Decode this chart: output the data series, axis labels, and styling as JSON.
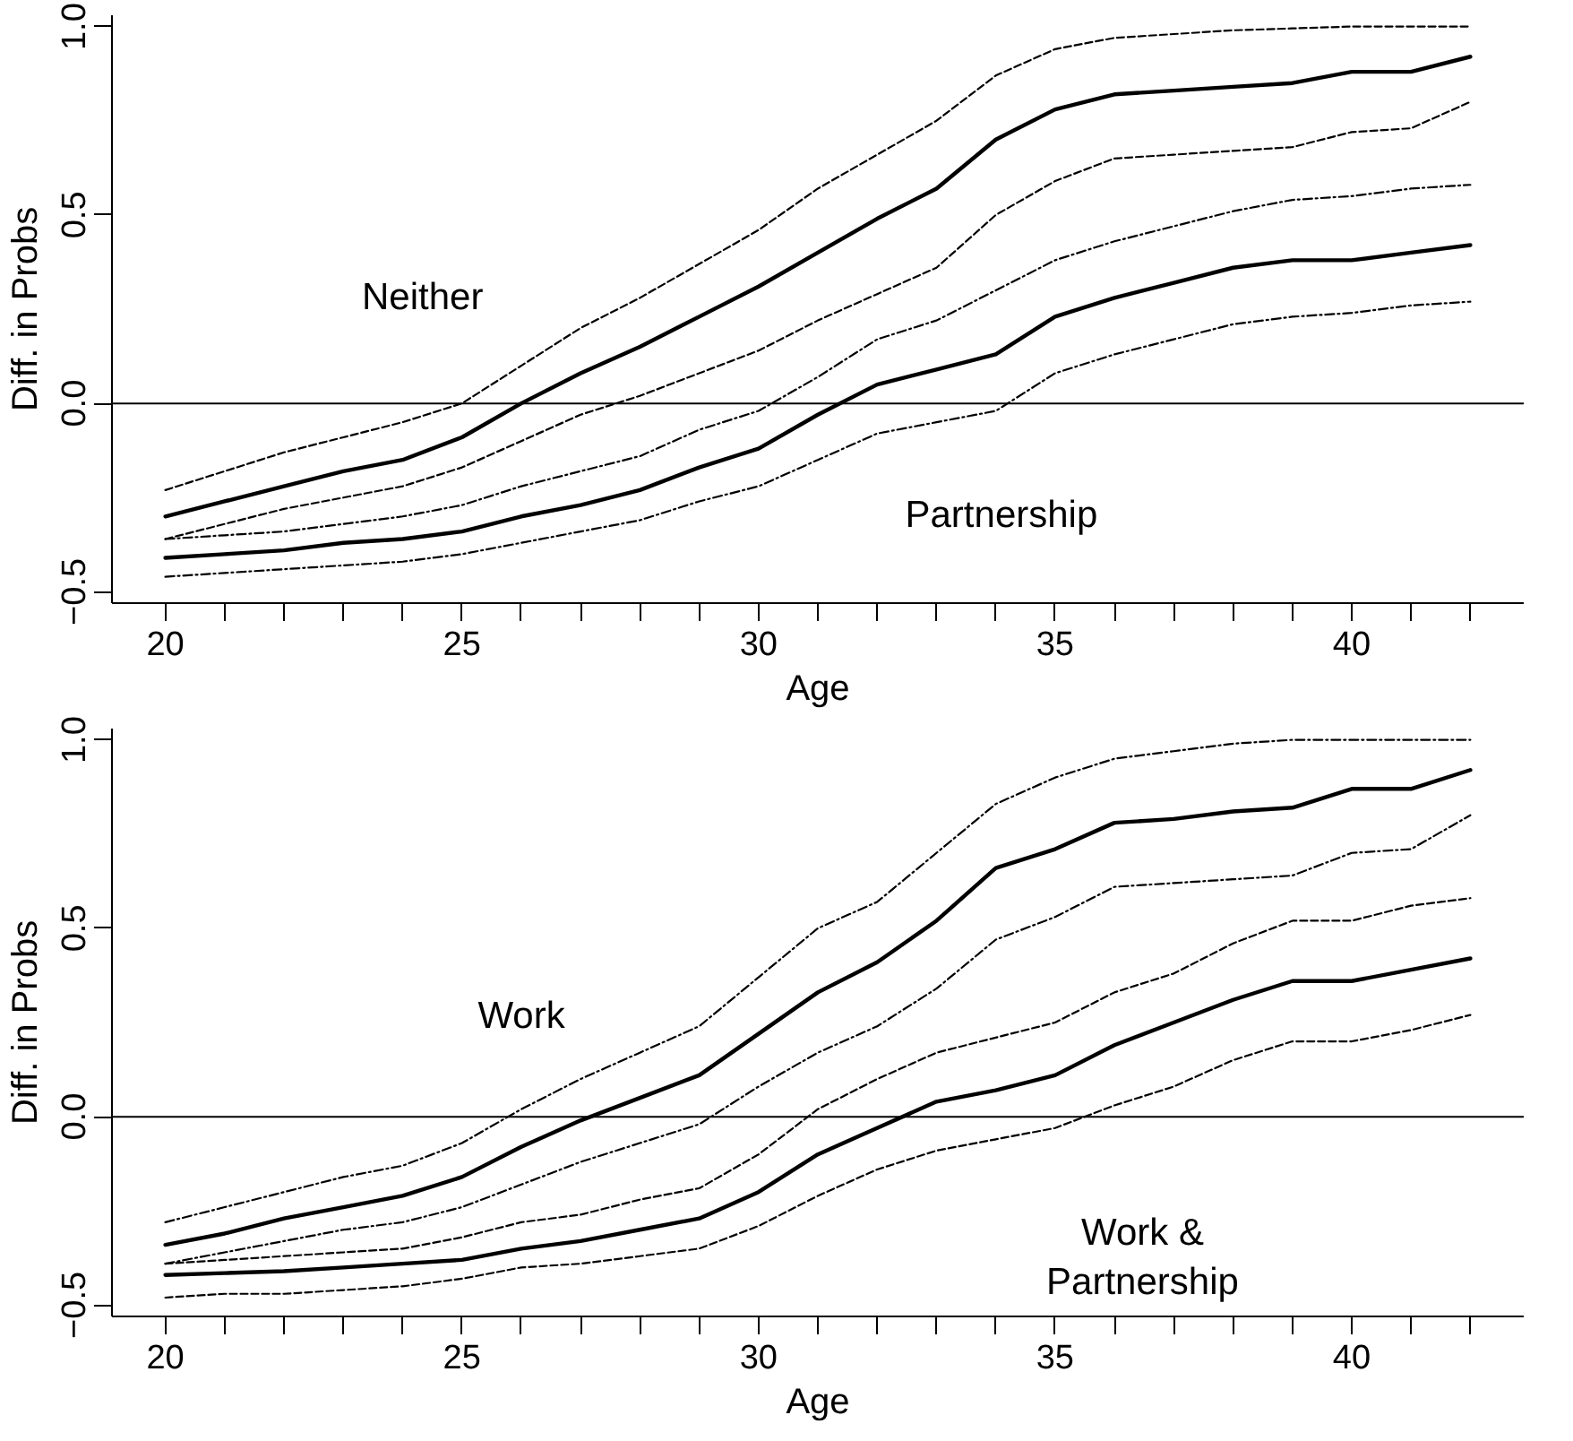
{
  "chart_data": [
    {
      "type": "line",
      "xlabel": "Age",
      "ylabel": "Diff. in Probs",
      "x": [
        20,
        21,
        22,
        23,
        24,
        25,
        26,
        27,
        28,
        29,
        30,
        31,
        32,
        33,
        34,
        35,
        36,
        37,
        38,
        39,
        40,
        41,
        42
      ],
      "xlim": [
        19.1,
        42.9
      ],
      "ylim": [
        -0.53,
        1.03
      ],
      "xticks": [
        20,
        {
          "value": 21,
          "label": null
        },
        {
          "value": 22,
          "label": null
        },
        {
          "value": 23,
          "label": null
        },
        {
          "value": 24,
          "label": null
        },
        25,
        {
          "value": 26,
          "label": null
        },
        {
          "value": 27,
          "label": null
        },
        {
          "value": 28,
          "label": null
        },
        {
          "value": 29,
          "label": null
        },
        30,
        {
          "value": 31,
          "label": null
        },
        {
          "value": 32,
          "label": null
        },
        {
          "value": 33,
          "label": null
        },
        {
          "value": 34,
          "label": null
        },
        35,
        {
          "value": 36,
          "label": null
        },
        {
          "value": 37,
          "label": null
        },
        {
          "value": 38,
          "label": null
        },
        {
          "value": 39,
          "label": null
        },
        40,
        {
          "value": 41,
          "label": null
        },
        {
          "value": 42,
          "label": null
        }
      ],
      "yticks": [
        {
          "value": -0.5,
          "label": "−0.5"
        },
        {
          "value": 0,
          "label": "0.0"
        },
        {
          "value": 0.5,
          "label": "0.5"
        },
        {
          "value": 1,
          "label": "1.0"
        }
      ],
      "grid": false,
      "marker": "none",
      "ref_lines": [
        {
          "axis": "y",
          "value": 0,
          "color": "#000000",
          "line_style": "solid"
        }
      ],
      "annotations": [
        "Neither",
        "Partnership"
      ],
      "series": [
        {
          "color": "#000000",
          "line_style": "dashed",
          "values": [
            -0.23,
            -0.18,
            -0.13,
            -0.09,
            -0.05,
            0.0,
            0.1,
            0.2,
            0.28,
            0.37,
            0.46,
            0.57,
            0.66,
            0.75,
            0.87,
            0.94,
            0.97,
            0.98,
            0.99,
            0.995,
            1.0,
            1.0,
            1.0
          ]
        },
        {
          "color": "#000000",
          "line_style": "solid",
          "values": [
            -0.3,
            -0.26,
            -0.22,
            -0.18,
            -0.15,
            -0.09,
            0.0,
            0.08,
            0.15,
            0.23,
            0.31,
            0.4,
            0.49,
            0.57,
            0.7,
            0.78,
            0.82,
            0.83,
            0.84,
            0.85,
            0.88,
            0.88,
            0.92
          ]
        },
        {
          "color": "#000000",
          "line_style": "dashed",
          "values": [
            -0.36,
            -0.32,
            -0.28,
            -0.25,
            -0.22,
            -0.17,
            -0.1,
            -0.03,
            0.02,
            0.08,
            0.14,
            0.22,
            0.29,
            0.36,
            0.5,
            0.59,
            0.65,
            0.66,
            0.67,
            0.68,
            0.72,
            0.73,
            0.8
          ]
        },
        {
          "color": "#000000",
          "line_style": "dashdot",
          "values": [
            -0.36,
            -0.35,
            -0.34,
            -0.32,
            -0.3,
            -0.27,
            -0.22,
            -0.18,
            -0.14,
            -0.07,
            -0.02,
            0.07,
            0.17,
            0.22,
            0.3,
            0.38,
            0.43,
            0.47,
            0.51,
            0.54,
            0.55,
            0.57,
            0.58
          ]
        },
        {
          "color": "#000000",
          "line_style": "solid",
          "values": [
            -0.41,
            -0.4,
            -0.39,
            -0.37,
            -0.36,
            -0.34,
            -0.3,
            -0.27,
            -0.23,
            -0.17,
            -0.12,
            -0.03,
            0.05,
            0.09,
            0.13,
            0.23,
            0.28,
            0.32,
            0.36,
            0.38,
            0.38,
            0.4,
            0.42
          ]
        },
        {
          "color": "#000000",
          "line_style": "dashdot",
          "values": [
            -0.46,
            -0.45,
            -0.44,
            -0.43,
            -0.42,
            -0.4,
            -0.37,
            -0.34,
            -0.31,
            -0.26,
            -0.22,
            -0.15,
            -0.08,
            -0.05,
            -0.02,
            0.08,
            0.13,
            0.17,
            0.21,
            0.23,
            0.24,
            0.26,
            0.27
          ]
        }
      ]
    },
    {
      "type": "line",
      "xlabel": "Age",
      "ylabel": "Diff. in Probs",
      "x": [
        20,
        21,
        22,
        23,
        24,
        25,
        26,
        27,
        28,
        29,
        30,
        31,
        32,
        33,
        34,
        35,
        36,
        37,
        38,
        39,
        40,
        41,
        42
      ],
      "xlim": [
        19.1,
        42.9
      ],
      "ylim": [
        -0.53,
        1.03
      ],
      "xticks": [
        20,
        {
          "value": 21,
          "label": null
        },
        {
          "value": 22,
          "label": null
        },
        {
          "value": 23,
          "label": null
        },
        {
          "value": 24,
          "label": null
        },
        25,
        {
          "value": 26,
          "label": null
        },
        {
          "value": 27,
          "label": null
        },
        {
          "value": 28,
          "label": null
        },
        {
          "value": 29,
          "label": null
        },
        30,
        {
          "value": 31,
          "label": null
        },
        {
          "value": 32,
          "label": null
        },
        {
          "value": 33,
          "label": null
        },
        {
          "value": 34,
          "label": null
        },
        35,
        {
          "value": 36,
          "label": null
        },
        {
          "value": 37,
          "label": null
        },
        {
          "value": 38,
          "label": null
        },
        {
          "value": 39,
          "label": null
        },
        40,
        {
          "value": 41,
          "label": null
        },
        {
          "value": 42,
          "label": null
        }
      ],
      "yticks": [
        {
          "value": -0.5,
          "label": "−0.5"
        },
        {
          "value": 0,
          "label": "0.0"
        },
        {
          "value": 0.5,
          "label": "0.5"
        },
        {
          "value": 1,
          "label": "1.0"
        }
      ],
      "grid": false,
      "marker": "none",
      "ref_lines": [
        {
          "axis": "y",
          "value": 0,
          "color": "#000000",
          "line_style": "solid"
        }
      ],
      "annotations": [
        "Work",
        "Work &\nPartnership"
      ],
      "series": [
        {
          "color": "#000000",
          "line_style": "dashdot",
          "values": [
            -0.28,
            -0.24,
            -0.2,
            -0.16,
            -0.13,
            -0.07,
            0.02,
            0.1,
            0.17,
            0.24,
            0.37,
            0.5,
            0.57,
            0.7,
            0.83,
            0.9,
            0.95,
            0.97,
            0.99,
            1.0,
            1.0,
            1.0,
            1.0
          ]
        },
        {
          "color": "#000000",
          "line_style": "solid",
          "values": [
            -0.34,
            -0.31,
            -0.27,
            -0.24,
            -0.21,
            -0.16,
            -0.08,
            -0.01,
            0.05,
            0.11,
            0.22,
            0.33,
            0.41,
            0.52,
            0.66,
            0.71,
            0.78,
            0.79,
            0.81,
            0.82,
            0.87,
            0.87,
            0.92
          ]
        },
        {
          "color": "#000000",
          "line_style": "dashdot",
          "values": [
            -0.39,
            -0.36,
            -0.33,
            -0.3,
            -0.28,
            -0.24,
            -0.18,
            -0.12,
            -0.07,
            -0.02,
            0.08,
            0.17,
            0.24,
            0.34,
            0.47,
            0.53,
            0.61,
            0.62,
            0.63,
            0.64,
            0.7,
            0.71,
            0.8
          ]
        },
        {
          "color": "#000000",
          "line_style": "dashed",
          "values": [
            -0.39,
            -0.38,
            -0.37,
            -0.36,
            -0.35,
            -0.32,
            -0.28,
            -0.26,
            -0.22,
            -0.19,
            -0.1,
            0.02,
            0.1,
            0.17,
            0.21,
            0.25,
            0.33,
            0.38,
            0.46,
            0.52,
            0.52,
            0.56,
            0.58
          ]
        },
        {
          "color": "#000000",
          "line_style": "solid",
          "values": [
            -0.42,
            -0.415,
            -0.41,
            -0.4,
            -0.39,
            -0.38,
            -0.35,
            -0.33,
            -0.3,
            -0.27,
            -0.2,
            -0.1,
            -0.03,
            0.04,
            0.07,
            0.11,
            0.19,
            0.25,
            0.31,
            0.36,
            0.36,
            0.39,
            0.42
          ]
        },
        {
          "color": "#000000",
          "line_style": "dashed",
          "values": [
            -0.48,
            -0.47,
            -0.47,
            -0.46,
            -0.45,
            -0.43,
            -0.4,
            -0.39,
            -0.37,
            -0.35,
            -0.29,
            -0.21,
            -0.14,
            -0.09,
            -0.06,
            -0.03,
            0.03,
            0.08,
            0.15,
            0.2,
            0.2,
            0.23,
            0.27
          ]
        }
      ]
    }
  ]
}
